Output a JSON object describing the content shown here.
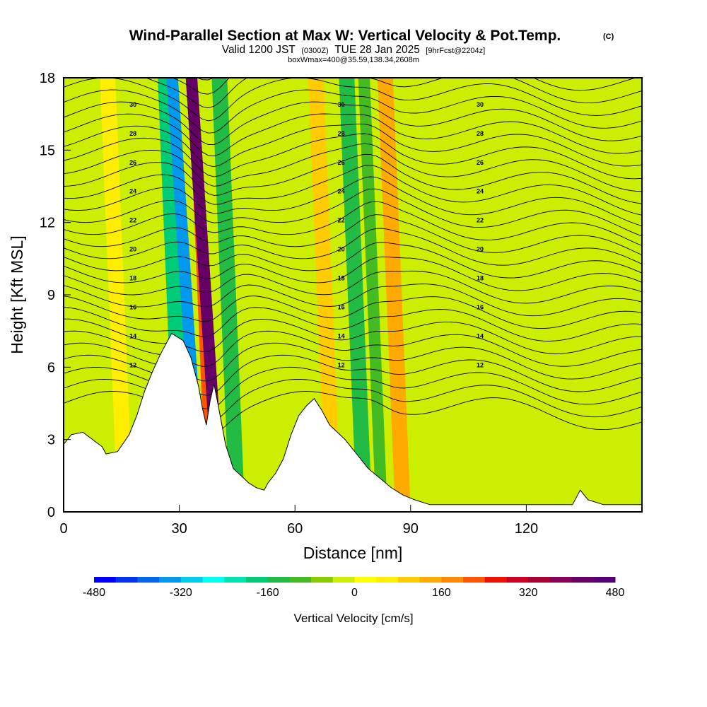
{
  "chart_data": {
    "type": "heatmap",
    "title": "Wind-Parallel Section at Max W: Vertical Velocity & Pot.Temp.",
    "copyright_mark": "(C)",
    "subtitle_a": "Valid 1200 JST",
    "subtitle_b": "(0300Z)",
    "subtitle_c": "TUE 28 Jan 2025",
    "subtitle_d": "[9hrFcst@2204z]",
    "subtitle2": "boxWmax=400@35.59,138.34,2608m",
    "xlabel": "Distance [nm]",
    "ylabel": "Height [Kft MSL]",
    "xlim": [
      0,
      150
    ],
    "ylim": [
      0,
      18
    ],
    "x_ticks": [
      0,
      30,
      60,
      90,
      120
    ],
    "y_ticks": [
      0,
      3,
      6,
      9,
      12,
      15,
      18
    ],
    "colorbar": {
      "label": "Vertical Velocity [cm/s]",
      "range": [
        -480,
        480
      ],
      "ticks": [
        -480,
        -320,
        -160,
        0,
        160,
        320,
        480
      ],
      "colors": [
        "#0000ff",
        "#0033ee",
        "#0066ee",
        "#0099ee",
        "#00ccee",
        "#00ffee",
        "#00e5b0",
        "#00cc77",
        "#22bb44",
        "#44bb22",
        "#88cc00",
        "#ccee00",
        "#ffff00",
        "#ffee00",
        "#ffcc00",
        "#ffaa00",
        "#ff8800",
        "#ff5500",
        "#ee1100",
        "#cc0022",
        "#aa0033",
        "#880055",
        "#660066",
        "#550077"
      ]
    },
    "vertical_velocity_bands": [
      {
        "x": 14,
        "w": 4,
        "value": 60
      },
      {
        "x": 29,
        "w": 5,
        "value": -200
      },
      {
        "x": 34,
        "w": 3,
        "value": -360
      },
      {
        "x": 37,
        "w": 2,
        "value": 220
      },
      {
        "x": 39,
        "w": 3,
        "value": 430
      },
      {
        "x": 43,
        "w": 4,
        "value": -160
      },
      {
        "x": 68,
        "w": 4,
        "value": 80
      },
      {
        "x": 76,
        "w": 4,
        "value": -140
      },
      {
        "x": 81,
        "w": 3,
        "value": -100
      },
      {
        "x": 86,
        "w": 4,
        "value": 120
      },
      {
        "x": 100,
        "w": 5,
        "value": -40
      }
    ],
    "terrain_kft": [
      [
        0,
        2.8
      ],
      [
        2,
        3.2
      ],
      [
        5,
        3.3
      ],
      [
        10,
        2.7
      ],
      [
        11,
        2.4
      ],
      [
        14,
        2.5
      ],
      [
        17,
        3.2
      ],
      [
        19,
        4
      ],
      [
        21,
        5
      ],
      [
        23,
        5.8
      ],
      [
        25,
        6.5
      ],
      [
        28,
        7.4
      ],
      [
        31,
        7.1
      ],
      [
        33,
        6.4
      ],
      [
        35,
        5.2
      ],
      [
        36,
        4.3
      ],
      [
        37,
        3.6
      ],
      [
        38,
        4.6
      ],
      [
        39,
        5.3
      ],
      [
        40,
        4.5
      ],
      [
        42,
        2.8
      ],
      [
        44,
        1.8
      ],
      [
        46,
        1.5
      ],
      [
        48,
        1.2
      ],
      [
        50,
        1.0
      ],
      [
        52,
        0.9
      ],
      [
        53,
        1.2
      ],
      [
        55,
        1.6
      ],
      [
        57,
        2.2
      ],
      [
        59,
        3.2
      ],
      [
        61,
        4.0
      ],
      [
        63,
        4.4
      ],
      [
        65,
        4.7
      ],
      [
        67,
        4.2
      ],
      [
        69,
        3.6
      ],
      [
        71,
        3.3
      ],
      [
        73,
        3.0
      ],
      [
        75,
        2.6
      ],
      [
        77,
        2.2
      ],
      [
        79,
        1.8
      ],
      [
        82,
        1.4
      ],
      [
        85,
        1.0
      ],
      [
        88,
        0.7
      ],
      [
        91,
        0.5
      ],
      [
        95,
        0.3
      ],
      [
        110,
        0.3
      ],
      [
        120,
        0.3
      ],
      [
        132,
        0.3
      ],
      [
        134,
        0.9
      ],
      [
        136,
        0.5
      ],
      [
        140,
        0.3
      ],
      [
        150,
        0.3
      ]
    ],
    "theta_contour_labels": [
      "12",
      "14",
      "16",
      "18",
      "20",
      "22",
      "24",
      "26",
      "28",
      "30"
    ]
  }
}
